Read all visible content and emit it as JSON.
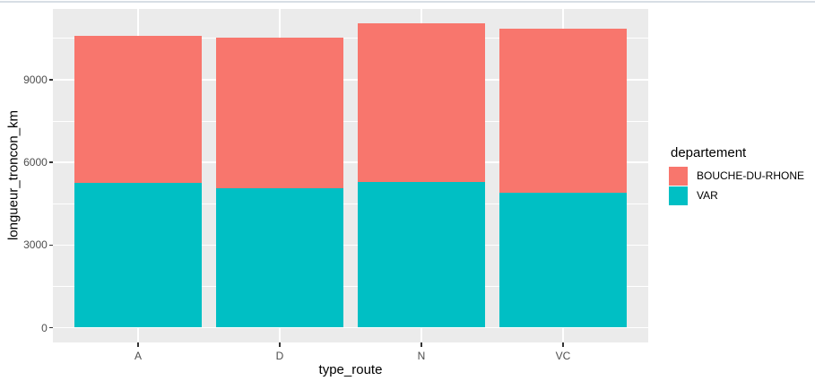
{
  "window": {
    "top_border_color": "#d7dee5",
    "background_color": "#ffffff"
  },
  "chart_data": {
    "type": "bar",
    "stacked": true,
    "title": "",
    "xlabel": "type_route",
    "ylabel": "longueur_troncon_km",
    "categories": [
      "A",
      "D",
      "N",
      "VC"
    ],
    "series": [
      {
        "name": "VAR",
        "color": "#00BFC4",
        "values": [
          5260,
          5070,
          5290,
          4910
        ]
      },
      {
        "name": "BOUCHE-DU-RHONE",
        "color": "#F8766D",
        "values": [
          5340,
          5450,
          5750,
          5930
        ]
      }
    ],
    "stack_totals": [
      10600,
      10520,
      11040,
      10840
    ],
    "y_ticks": [
      0,
      3000,
      6000,
      9000
    ],
    "y_minor_ticks": [
      1500,
      4500,
      7500,
      10500
    ],
    "ylim": [
      -580,
      11600
    ],
    "grid": true,
    "legend_position": "right",
    "panel_background": "#EBEBEB",
    "grid_color": "#FFFFFF",
    "axis_text_color": "#4D4D4D",
    "axis_title_color": "#000000",
    "tick_mark_color": "#333333"
  },
  "legend": {
    "title": "departement",
    "items": [
      {
        "label": "BOUCHE-DU-RHONE",
        "color": "#F8766D"
      },
      {
        "label": "VAR",
        "color": "#00BFC4"
      }
    ]
  }
}
